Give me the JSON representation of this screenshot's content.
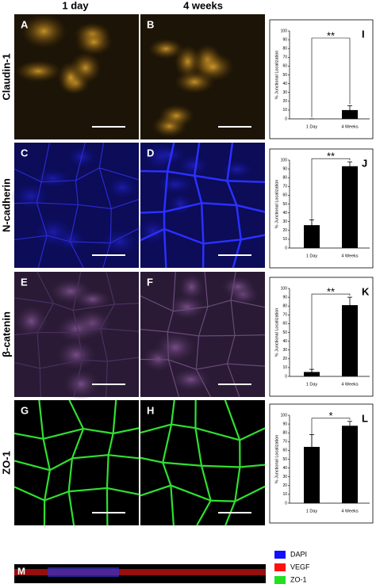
{
  "column_headers": [
    "1 day",
    "4 weeks"
  ],
  "rows": [
    {
      "label": "Claudin-1",
      "panels": [
        "A",
        "B"
      ]
    },
    {
      "label": "N-cadherin",
      "panels": [
        "C",
        "D"
      ]
    },
    {
      "label": "β-catenin",
      "panels": [
        "E",
        "F"
      ]
    },
    {
      "label": "ZO-1",
      "panels": [
        "G",
        "H"
      ]
    }
  ],
  "panel_m": {
    "label": "M",
    "legend": [
      {
        "name": "DAPI",
        "color": "#1010ff"
      },
      {
        "name": "VEGF",
        "color": "#ff1010"
      },
      {
        "name": "ZO-1",
        "color": "#20e020"
      }
    ]
  },
  "chart_data": [
    {
      "type": "bar",
      "panel": "I",
      "ylabel": "% Junctional Localization",
      "categories": [
        "1 Day",
        "4 Weeks"
      ],
      "values": [
        0,
        10
      ],
      "errors": [
        0,
        5
      ],
      "significance": "**",
      "color": "#000000",
      "ylim": [
        0,
        100
      ],
      "yticks": [
        0,
        10,
        20,
        30,
        40,
        50,
        60,
        70,
        80,
        90,
        100
      ]
    },
    {
      "type": "bar",
      "panel": "J",
      "ylabel": "% Junctional Localization",
      "categories": [
        "1 Day",
        "4 Weeks"
      ],
      "values": [
        26,
        93
      ],
      "errors": [
        6,
        5
      ],
      "significance": "**",
      "color": "#000000",
      "ylim": [
        0,
        100
      ],
      "yticks": [
        0,
        10,
        20,
        30,
        40,
        50,
        60,
        70,
        80,
        90,
        100
      ]
    },
    {
      "type": "bar",
      "panel": "K",
      "ylabel": "% Junctional Localization",
      "categories": [
        "1 Day",
        "4 Weeks"
      ],
      "values": [
        5,
        81
      ],
      "errors": [
        3,
        9
      ],
      "significance": "**",
      "color": "#000000",
      "ylim": [
        0,
        100
      ],
      "yticks": [
        0,
        10,
        20,
        30,
        40,
        50,
        60,
        70,
        80,
        90,
        100
      ]
    },
    {
      "type": "bar",
      "panel": "L",
      "ylabel": "% Junctional Localization",
      "categories": [
        "1 Day",
        "4 Weeks"
      ],
      "values": [
        64,
        88
      ],
      "errors": [
        14,
        5
      ],
      "significance": "*",
      "color": "#000000",
      "ylim": [
        0,
        100
      ],
      "yticks": [
        0,
        10,
        20,
        30,
        40,
        50,
        60,
        70,
        80,
        90,
        100
      ]
    }
  ]
}
